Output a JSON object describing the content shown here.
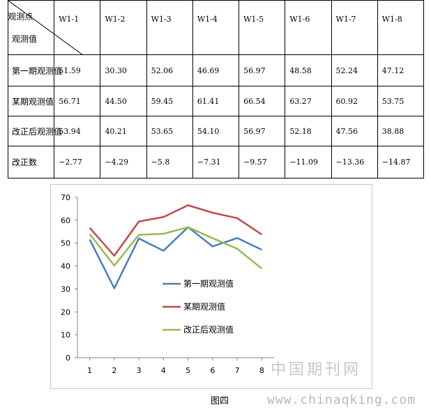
{
  "table": {
    "corner_top": "观测点",
    "corner_bottom": "观测值",
    "columns": [
      "W1-1",
      "W1-2",
      "W1-3",
      "W1-4",
      "W1-5",
      "W1-6",
      "W1-7",
      "W1-8"
    ],
    "rows": [
      {
        "label": "第一期观测值",
        "values": [
          "51.59",
          "30.30",
          "52.06",
          "46.69",
          "56.97",
          "48.58",
          "52.24",
          "47.12"
        ]
      },
      {
        "label": "某期观测值",
        "values": [
          "56.71",
          "44.50",
          "59.45",
          "61.41",
          "66.54",
          "63.27",
          "60.92",
          "53.75"
        ]
      },
      {
        "label": "改正后观测值",
        "values": [
          "53.94",
          "40.21",
          "53.65",
          "54.10",
          "56.97",
          "52.18",
          "47.56",
          "38.88"
        ]
      },
      {
        "label": "改正数",
        "values": [
          "−2.77",
          "−4.29",
          "−5.8",
          "−7.31",
          "−9.57",
          "−11.09",
          "−13.36",
          "−14.87"
        ]
      }
    ]
  },
  "chart_data": {
    "type": "line",
    "x": [
      1,
      2,
      3,
      4,
      5,
      6,
      7,
      8
    ],
    "x_tick_labels": [
      "1",
      "2",
      "3",
      "4",
      "5",
      "6",
      "7",
      "8"
    ],
    "ylim": [
      0,
      70
    ],
    "y_ticks": [
      0,
      10,
      20,
      30,
      40,
      50,
      60,
      70
    ],
    "y_tick_labels": [
      "0",
      "10",
      "20",
      "30",
      "40",
      "50",
      "60",
      "70"
    ],
    "grid": false,
    "legend_position": "inside-center",
    "series": [
      {
        "name": "第一期观测值",
        "color": "#4a7ebb",
        "values": [
          51.59,
          30.3,
          52.06,
          46.69,
          56.97,
          48.58,
          52.24,
          47.12
        ]
      },
      {
        "name": "某期观测值",
        "color": "#be4b48",
        "values": [
          56.71,
          44.5,
          59.45,
          61.41,
          66.54,
          63.27,
          60.92,
          53.75
        ]
      },
      {
        "name": "改正后观测值",
        "color": "#98b954",
        "values": [
          53.94,
          40.21,
          53.65,
          54.1,
          56.97,
          52.18,
          47.56,
          38.88
        ]
      }
    ]
  },
  "caption": "图四",
  "watermark": {
    "text": "中国期刊网",
    "url": "www.chinaqking.com"
  }
}
